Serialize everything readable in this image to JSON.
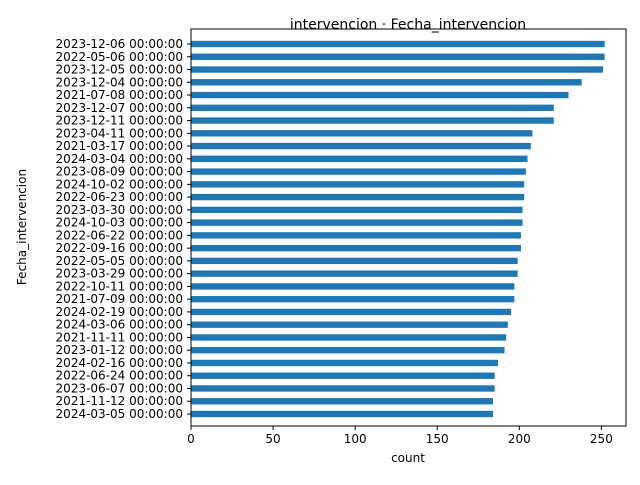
{
  "colors": {
    "bar": "#1f77b4",
    "axis": "#000000",
    "background": "#ffffff"
  },
  "chart_data": {
    "type": "bar",
    "orientation": "horizontal",
    "title": "intervencion · Fecha_intervencion",
    "xlabel": "count",
    "ylabel": "Fecha_intervencion",
    "xlim": [
      0,
      265
    ],
    "xticks": [
      0,
      50,
      100,
      150,
      200,
      250
    ],
    "grid": false,
    "categories": [
      "2023-12-06 00:00:00",
      "2022-05-06 00:00:00",
      "2023-12-05 00:00:00",
      "2023-12-04 00:00:00",
      "2021-07-08 00:00:00",
      "2023-12-07 00:00:00",
      "2023-12-11 00:00:00",
      "2023-04-11 00:00:00",
      "2021-03-17 00:00:00",
      "2024-03-04 00:00:00",
      "2023-08-09 00:00:00",
      "2024-10-02 00:00:00",
      "2022-06-23 00:00:00",
      "2023-03-30 00:00:00",
      "2024-10-03 00:00:00",
      "2022-06-22 00:00:00",
      "2022-09-16 00:00:00",
      "2022-05-05 00:00:00",
      "2023-03-29 00:00:00",
      "2022-10-11 00:00:00",
      "2021-07-09 00:00:00",
      "2024-02-19 00:00:00",
      "2024-03-06 00:00:00",
      "2021-11-11 00:00:00",
      "2023-01-12 00:00:00",
      "2024-02-16 00:00:00",
      "2022-06-24 00:00:00",
      "2023-06-07 00:00:00",
      "2021-11-12 00:00:00",
      "2024-03-05 00:00:00"
    ],
    "values": [
      252,
      252,
      251,
      238,
      230,
      221,
      221,
      208,
      207,
      205,
      204,
      203,
      203,
      202,
      202,
      201,
      201,
      199,
      199,
      197,
      197,
      195,
      193,
      192,
      191,
      187,
      185,
      185,
      184,
      184
    ]
  }
}
